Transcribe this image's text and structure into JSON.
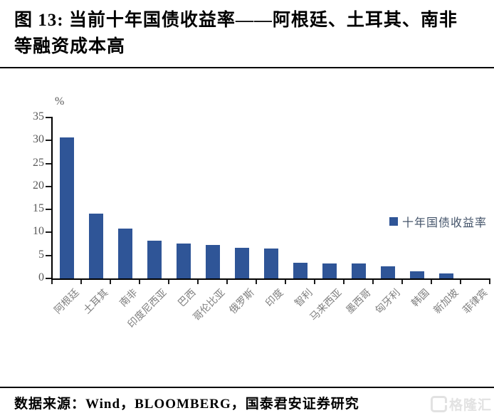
{
  "header": {
    "title_full": "图 13: 当前十年国债收益率——阿根廷、土耳其、南非等融资成本高",
    "title_lines": [
      "图 13: 当前十年国债收益率——阿根廷、土耳其、南非",
      "等融资成本高"
    ]
  },
  "chart_data": {
    "type": "bar",
    "title": "图 13: 当前十年国债收益率——阿根廷、土耳其、南非等融资成本高",
    "unit_label": "%",
    "categories": [
      "阿根廷",
      "土耳其",
      "南非",
      "印度尼西亚",
      "巴西",
      "哥伦比亚",
      "俄罗斯",
      "印度",
      "智利",
      "马来西亚",
      "墨西哥",
      "匈牙利",
      "韩国",
      "新加坡",
      "菲律宾"
    ],
    "values": [
      30.7,
      14.1,
      10.8,
      8.2,
      7.6,
      7.3,
      6.7,
      6.5,
      3.4,
      3.3,
      3.2,
      2.6,
      1.6,
      1.1,
      0
    ],
    "series": [
      {
        "name": "十年国债收益率",
        "values": [
          30.7,
          14.1,
          10.8,
          8.2,
          7.6,
          7.3,
          6.7,
          6.5,
          3.4,
          3.3,
          3.2,
          2.6,
          1.6,
          1.1,
          0
        ]
      }
    ],
    "legend_label": "十年国债收益率",
    "legend_position": "middle-right",
    "xlabel": "",
    "ylabel": "%",
    "ylim": [
      0,
      35
    ],
    "yticks": [
      0,
      5,
      10,
      15,
      20,
      25,
      30,
      35
    ],
    "grid": false,
    "bar_color": "#2F5597"
  },
  "colors": {
    "bar": "#2F5597",
    "axis": "#000000",
    "y_tick_labels": "#595959",
    "x_tick_labels": "#7f7f7f",
    "legend_text": "#44546A",
    "watermark": "#e2e2e2"
  },
  "footer": {
    "source_text": "数据来源：Wind，BLOOMBERG，国泰君安证券研究"
  },
  "watermark": {
    "text": "格隆汇"
  }
}
